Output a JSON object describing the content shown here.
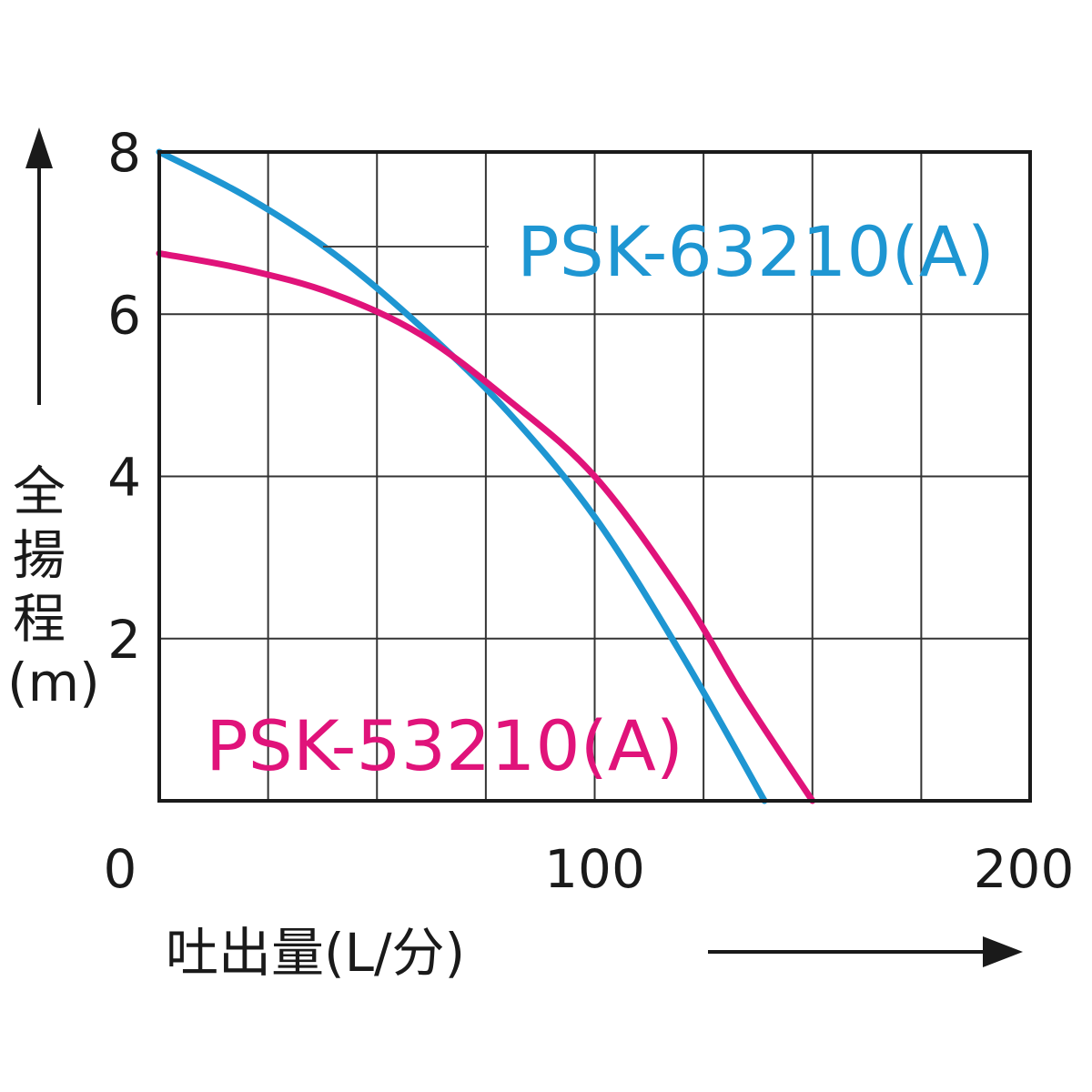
{
  "chart_data": {
    "type": "line",
    "xlabel": "吐出量(L/分)",
    "ylabel": "全揚程(m)",
    "xlim": [
      0,
      200
    ],
    "ylim": [
      0,
      8
    ],
    "x_tick_labels": [
      "0",
      "100",
      "200"
    ],
    "y_tick_labels": [
      "2",
      "4",
      "6",
      "8"
    ],
    "grid": true,
    "series": [
      {
        "name": "PSK-63210(A)",
        "color": "#1e96d2",
        "points": [
          [
            0,
            8.0
          ],
          [
            20,
            7.45
          ],
          [
            40,
            6.75
          ],
          [
            60,
            5.85
          ],
          [
            80,
            4.8
          ],
          [
            100,
            3.5
          ],
          [
            120,
            1.8
          ],
          [
            139,
            0
          ]
        ]
      },
      {
        "name": "PSK-53210(A)",
        "color": "#e0137a",
        "points": [
          [
            0,
            6.75
          ],
          [
            20,
            6.55
          ],
          [
            40,
            6.25
          ],
          [
            60,
            5.75
          ],
          [
            80,
            4.95
          ],
          [
            100,
            4.0
          ],
          [
            120,
            2.55
          ],
          [
            134,
            1.3
          ],
          [
            150,
            0
          ]
        ]
      }
    ]
  }
}
